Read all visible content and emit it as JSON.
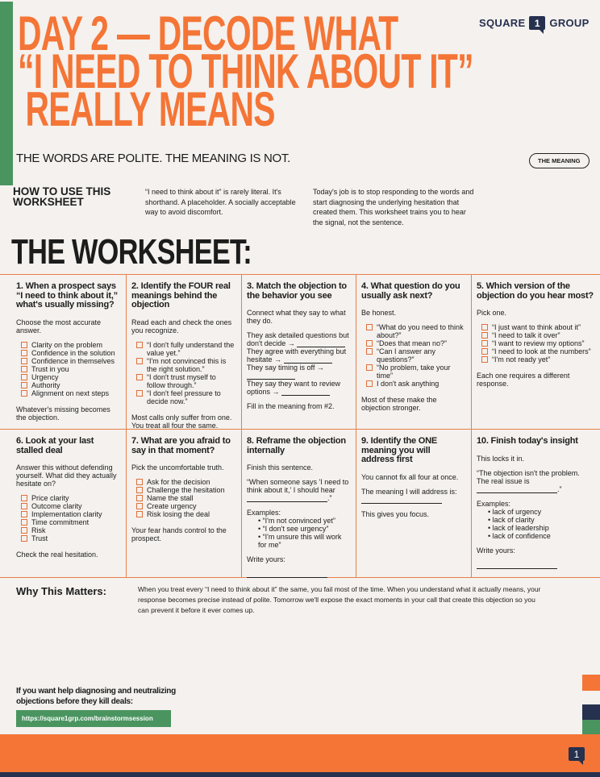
{
  "header": {
    "title_lines": [
      "DAY 2 — DECODE WHAT",
      "“I NEED TO THINK ABOUT IT”",
      "REALLY MEANS"
    ],
    "logo": {
      "left": "SQUARE",
      "mark": "1",
      "right": "GROUP"
    },
    "subtitle": "THE WORDS ARE POLITE. THE MEANING IS NOT.",
    "badge": "THE MEANING"
  },
  "howto": {
    "heading_lines": [
      "HOW TO USE THIS",
      "WORKSHEET"
    ],
    "para1": "“I need to think about it” is rarely literal. It's shorthand. A placeholder. A socially acceptable way to avoid discomfort.",
    "para2": "Today's job is to stop responding to the words and start diagnosing the underlying hesitation that created them. This worksheet trains you to hear the signal, not the sentence."
  },
  "worksheet_heading": "THE WORKSHEET:",
  "cells": [
    {
      "title": "1. When a prospect says “I need to think about it,” what's usually missing?",
      "intro": "Choose the most accurate answer.",
      "checks": [
        "Clarity on the problem",
        "Confidence in the solution",
        "Confidence in themselves",
        "Trust in you",
        "Urgency",
        "Authority",
        "Alignment on next steps"
      ],
      "outro": "Whatever's missing becomes the objection."
    },
    {
      "title": "2. Identify the FOUR real meanings behind the objection",
      "intro": "Read each and check the ones you recognize.",
      "checks": [
        "“I don't fully understand the value yet.”",
        "“I'm not convinced this is the right solution.”",
        "“I don't trust myself to follow through.”",
        "“I don't feel pressure to decide now.”"
      ],
      "outro": "Most calls only suffer from one. You treat all four the same."
    },
    {
      "title": "3. Match the objection to the behavior you see",
      "intro": "Connect what they say to what they do.",
      "matches": [
        "They ask detailed questions but don't decide →",
        "They agree with everything but hesitate →",
        "They say timing is off →",
        "They say they want to review options →"
      ],
      "outro": "Fill in the meaning from #2."
    },
    {
      "title": "4. What question do you usually ask next?",
      "intro": "Be honest.",
      "checks": [
        "“What do you need to think about?”",
        "“Does that mean no?”",
        "“Can I answer any questions?”",
        "“No problem, take your time”",
        "I don't ask anything"
      ],
      "outro": "Most of these make the objection stronger."
    },
    {
      "title": "5. Which version of the objection do you hear most?",
      "intro": "Pick one.",
      "checks": [
        "“I just want to think about it”",
        "“I need to talk it over”",
        "“I want to review my options”",
        "“I need to look at the numbers”",
        "“I'm not ready yet”"
      ],
      "outro": "Each one requires a different response."
    },
    {
      "title": "6. Look at your last stalled deal",
      "intro": "Answer this without defending yourself. What did they actually hesitate on?",
      "checks": [
        "Price clarity",
        "Outcome clarity",
        "Implementation clarity",
        "Time commitment",
        "Risk",
        "Trust"
      ],
      "outro": "Check the real hesitation."
    },
    {
      "title": "7. What are you afraid to say in that moment?",
      "intro": "Pick the uncomfortable truth.",
      "checks": [
        "Ask for the decision",
        "Challenge the hesitation",
        "Name the stall",
        "Create urgency",
        "Risk losing the deal"
      ],
      "outro": "Your fear hands control to the prospect."
    },
    {
      "title": "8. Reframe the objection internally",
      "intro": "Finish this sentence.",
      "sentence": "“When someone says 'I need to think about it,' I should hear",
      "examples_label": "Examples:",
      "examples": [
        "“I'm not convinced yet”",
        "“I don't see urgency”",
        "“I'm unsure this will work for me”"
      ],
      "outro": "Write yours:"
    },
    {
      "title": "9. Identify the ONE meaning you will address first",
      "intro": "You cannot fix all four at once.",
      "sentence": "The meaning I will address is:",
      "outro": "This gives you focus."
    },
    {
      "title": "10. Finish today's insight",
      "intro": "This locks it in.",
      "sentence": "“The objection isn't the problem. The real issue is",
      "examples_label": "Examples:",
      "examples": [
        "lack of urgency",
        "lack of clarity",
        "lack of leadership",
        "lack of confidence"
      ],
      "outro": "Write yours:"
    }
  ],
  "why": {
    "heading": "Why This Matters:",
    "text": "When you treat every “I need to think about it” the same, you fail most of the time. When you understand what it actually means, your response becomes precise instead of polite. Tomorrow we'll expose the exact moments in your call that create this objection so you can prevent it before it ever comes up."
  },
  "cta": {
    "text": "If you want help diagnosing and neutralizing objections before they kill deals:",
    "link": "https://square1grp.com/brainstormsession"
  },
  "footer": {
    "mark": "1"
  },
  "colors": {
    "orange": "#f47536",
    "green": "#4a9460",
    "navy": "#26304f",
    "background": "#f4f1ee"
  }
}
